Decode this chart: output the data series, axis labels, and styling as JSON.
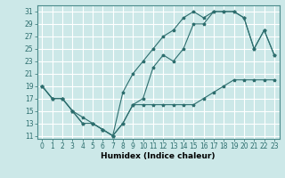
{
  "xlabel": "Humidex (Indice chaleur)",
  "bg_color": "#cce8e8",
  "grid_color": "#ffffff",
  "line_color": "#2d6e6e",
  "xlim": [
    -0.5,
    23.5
  ],
  "ylim": [
    10.5,
    32.0
  ],
  "xticks": [
    0,
    1,
    2,
    3,
    4,
    5,
    6,
    7,
    8,
    9,
    10,
    11,
    12,
    13,
    14,
    15,
    16,
    17,
    18,
    19,
    20,
    21,
    22,
    23
  ],
  "yticks": [
    11,
    13,
    15,
    17,
    19,
    21,
    23,
    25,
    27,
    29,
    31
  ],
  "line1_x": [
    0,
    1,
    2,
    3,
    4,
    5,
    6,
    7,
    8,
    9,
    10,
    11,
    12,
    13,
    14,
    15,
    16,
    17,
    18,
    19,
    20,
    21,
    22,
    23
  ],
  "line1_y": [
    19,
    17,
    17,
    15,
    14,
    13,
    12,
    11,
    13,
    16,
    16,
    16,
    16,
    16,
    16,
    16,
    17,
    18,
    19,
    20,
    20,
    20,
    20,
    20
  ],
  "line2_x": [
    0,
    1,
    2,
    3,
    4,
    5,
    6,
    7,
    8,
    9,
    10,
    11,
    12,
    13,
    14,
    15,
    16,
    17,
    18,
    19,
    20,
    21,
    22,
    23
  ],
  "line2_y": [
    19,
    17,
    17,
    15,
    13,
    13,
    12,
    11,
    18,
    21,
    23,
    25,
    27,
    28,
    30,
    31,
    30,
    31,
    31,
    31,
    30,
    25,
    28,
    24
  ],
  "line3_x": [
    0,
    1,
    2,
    3,
    4,
    5,
    6,
    7,
    8,
    9,
    10,
    11,
    12,
    13,
    14,
    15,
    16,
    17,
    18,
    19,
    20,
    21,
    22,
    23
  ],
  "line3_y": [
    19,
    17,
    17,
    15,
    13,
    13,
    12,
    11,
    13,
    16,
    17,
    22,
    24,
    23,
    25,
    29,
    29,
    31,
    31,
    31,
    30,
    25,
    28,
    24
  ],
  "tick_fontsize": 5.5,
  "xlabel_fontsize": 6.5
}
